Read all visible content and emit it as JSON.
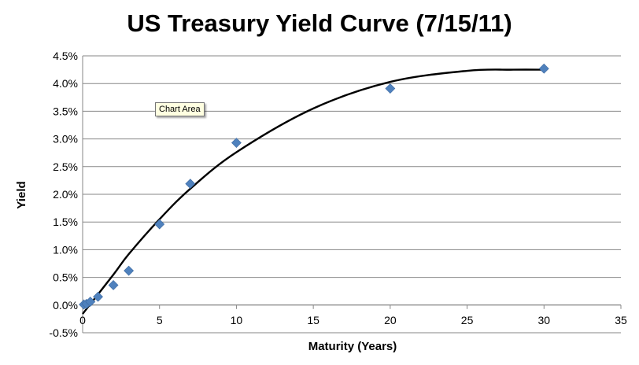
{
  "chart_data": {
    "type": "scatter",
    "title": "US Treasury Yield Curve (7/15/11)",
    "xlabel": "Maturity (Years)",
    "ylabel": "Yield",
    "xlim": [
      0,
      35
    ],
    "ylim": [
      -0.5,
      4.5
    ],
    "x_ticks": [
      0,
      5,
      10,
      15,
      20,
      25,
      30,
      35
    ],
    "y_ticks": [
      -0.5,
      0.0,
      0.5,
      1.0,
      1.5,
      2.0,
      2.5,
      3.0,
      3.5,
      4.0,
      4.5
    ],
    "y_tick_labels": [
      "-0.5%",
      "0.0%",
      "0.5%",
      "1.0%",
      "1.5%",
      "2.0%",
      "2.5%",
      "3.0%",
      "3.5%",
      "4.0%",
      "4.5%"
    ],
    "grid": "horizontal",
    "series": [
      {
        "marker": "diamond",
        "color": "#4f81bd",
        "points": [
          {
            "x": 0.08,
            "y": 0.01
          },
          {
            "x": 0.25,
            "y": 0.02
          },
          {
            "x": 0.5,
            "y": 0.06
          },
          {
            "x": 1,
            "y": 0.15
          },
          {
            "x": 2,
            "y": 0.36
          },
          {
            "x": 3,
            "y": 0.62
          },
          {
            "x": 5,
            "y": 1.46
          },
          {
            "x": 7,
            "y": 2.19
          },
          {
            "x": 10,
            "y": 2.93
          },
          {
            "x": 20,
            "y": 3.91
          },
          {
            "x": 30,
            "y": 4.27
          }
        ]
      }
    ],
    "trendline": {
      "type": "curve",
      "color": "#000000",
      "points": [
        {
          "x": 0,
          "y": -0.16
        },
        {
          "x": 2,
          "y": 0.55
        },
        {
          "x": 3,
          "y": 0.92
        },
        {
          "x": 5,
          "y": 1.55
        },
        {
          "x": 7,
          "y": 2.1
        },
        {
          "x": 10,
          "y": 2.76
        },
        {
          "x": 15,
          "y": 3.55
        },
        {
          "x": 20,
          "y": 4.03
        },
        {
          "x": 25,
          "y": 4.23
        },
        {
          "x": 28,
          "y": 4.25
        },
        {
          "x": 30,
          "y": 4.25
        }
      ]
    }
  },
  "tooltip": {
    "text": "Chart Area"
  }
}
